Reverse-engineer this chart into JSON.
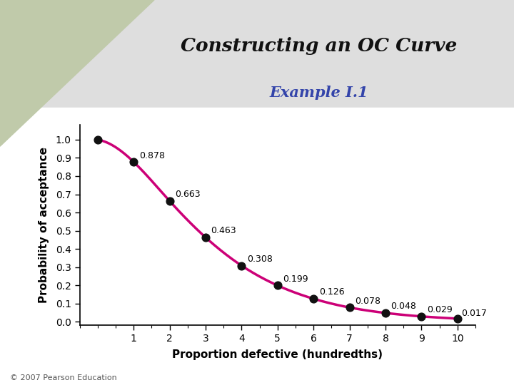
{
  "title": "Constructing an OC Curve",
  "subtitle": "Example I.1",
  "xlabel": "Proportion defective (hundredths)",
  "ylabel": "Probability of acceptance",
  "x": [
    0,
    1,
    2,
    3,
    4,
    5,
    6,
    7,
    8,
    9,
    10
  ],
  "y": [
    1.0,
    0.878,
    0.663,
    0.463,
    0.308,
    0.199,
    0.126,
    0.078,
    0.048,
    0.029,
    0.017
  ],
  "labels": [
    "",
    "0.878",
    "0.663",
    "0.463",
    "0.308",
    "0.199",
    "0.126",
    "0.078",
    "0.048",
    "0.029",
    "0.017"
  ],
  "label_offsets_x": [
    0,
    0.15,
    0.15,
    0.15,
    0.15,
    0.15,
    0.15,
    0.15,
    0.15,
    0.15,
    0.1
  ],
  "label_offsets_y": [
    0,
    0.01,
    0.01,
    0.01,
    0.01,
    0.01,
    0.01,
    0.01,
    0.01,
    0.01,
    0.005
  ],
  "line_color": "#CC0077",
  "marker_color": "#111111",
  "title_color": "#111111",
  "subtitle_color": "#3344AA",
  "header_bg_color": "#DEDEDE",
  "triangle_color": "#C0CAAA",
  "plot_bg_color": "#FFFFFF",
  "fig_bg_color": "#DEDEDE",
  "footer_text": "© 2007 Pearson Education",
  "xlim": [
    -0.5,
    10.5
  ],
  "ylim": [
    -0.02,
    1.08
  ],
  "xticks": [
    1,
    2,
    3,
    4,
    5,
    6,
    7,
    8,
    9,
    10
  ],
  "yticks": [
    0.0,
    0.1,
    0.2,
    0.3,
    0.4,
    0.5,
    0.6,
    0.7,
    0.8,
    0.9,
    1.0
  ]
}
